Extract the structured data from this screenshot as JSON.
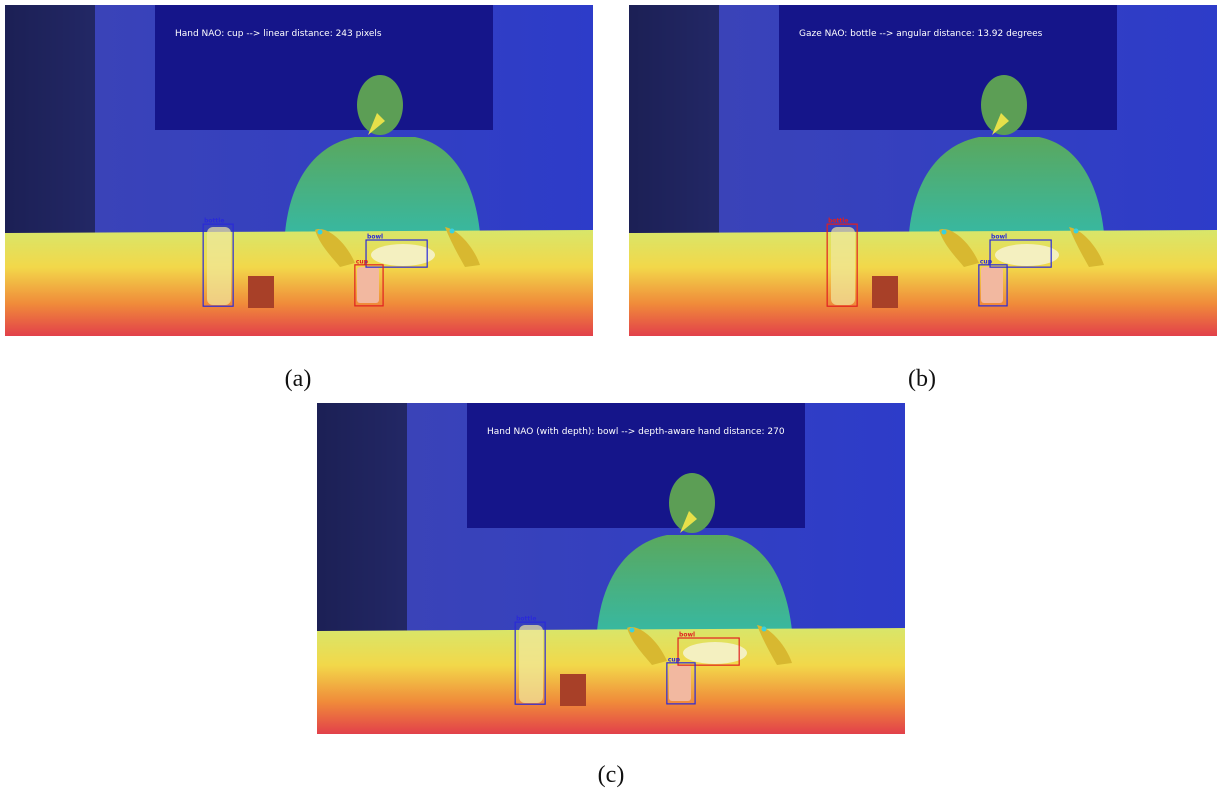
{
  "panels": [
    {
      "overlay_text": "Hand NAO: cup --> linear distance: 243 pixels",
      "caption": "(a)",
      "boxes": [
        {
          "label": "bottle",
          "color": "#2a2ad8"
        },
        {
          "label": "bowl",
          "color": "#2a2ad8"
        },
        {
          "label": "cup",
          "color": "#e02020"
        }
      ]
    },
    {
      "overlay_text": "Gaze NAO: bottle --> angular distance: 13.92 degrees",
      "caption": "(b)",
      "boxes": [
        {
          "label": "bottle",
          "color": "#e02020"
        },
        {
          "label": "bowl",
          "color": "#2a2ad8"
        },
        {
          "label": "cup",
          "color": "#2a2ad8"
        }
      ]
    },
    {
      "overlay_text": "Hand NAO (with depth): bowl --> depth-aware hand distance: 270",
      "caption": "(c)",
      "boxes": [
        {
          "label": "bottle",
          "color": "#2a2ad8"
        },
        {
          "label": "bowl",
          "color": "#e02020"
        },
        {
          "label": "cup",
          "color": "#2a2ad8"
        }
      ]
    }
  ]
}
